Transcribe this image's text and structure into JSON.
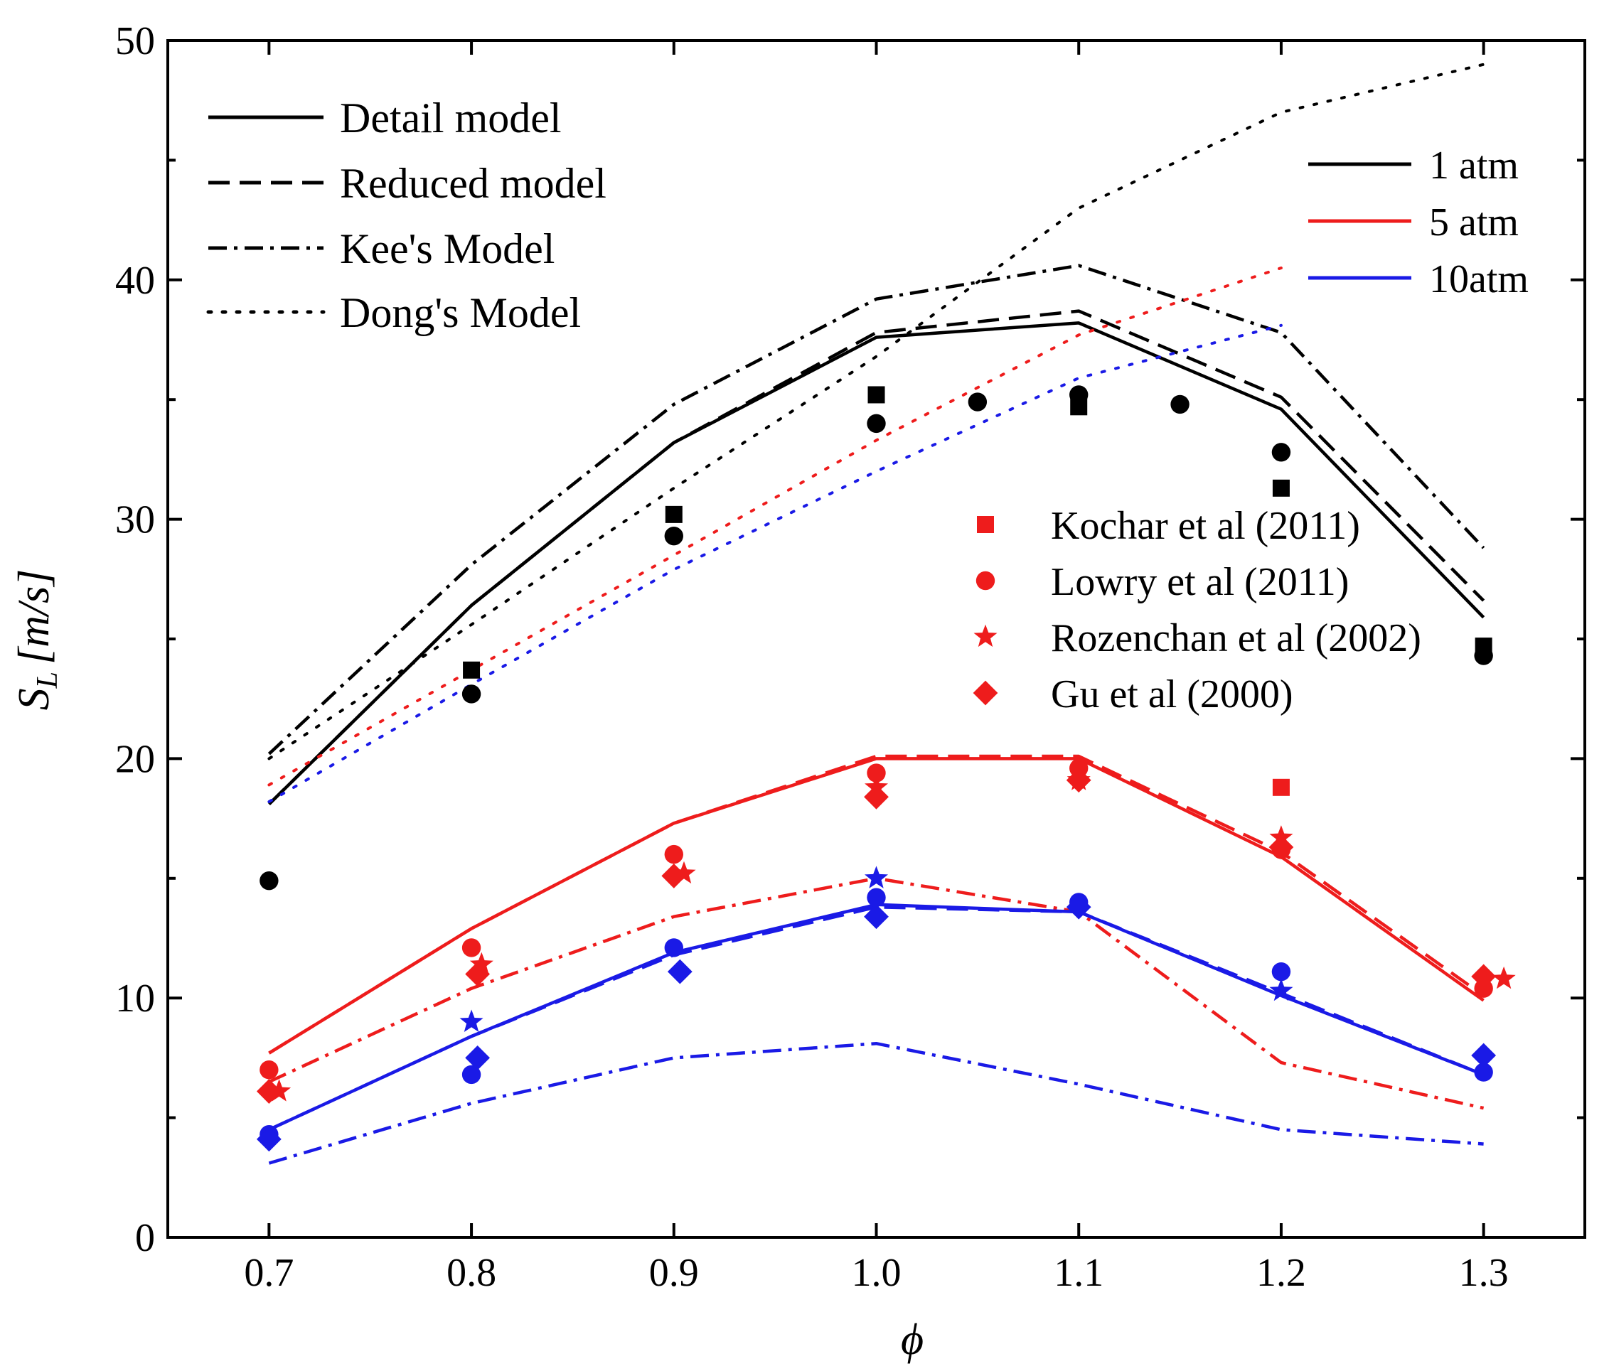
{
  "chart_data": {
    "type": "line",
    "xlabel": "ϕ",
    "ylabel_main": "S",
    "ylabel_sub": "L",
    "ylabel_unit": "[m/s]",
    "xlim": [
      0.65,
      1.35
    ],
    "ylim": [
      0,
      50
    ],
    "x_ticks": [
      0.7,
      0.8,
      0.9,
      1.0,
      1.1,
      1.2,
      1.3
    ],
    "x_tick_labels": [
      "0.7",
      "0.8",
      "0.9",
      "1.0",
      "1.1",
      "1.2",
      "1.3"
    ],
    "y_ticks": [
      0,
      10,
      20,
      30,
      40,
      50
    ],
    "y_tick_labels": [
      "0",
      "10",
      "20",
      "30",
      "40",
      "50"
    ],
    "y_minor_ticks": [
      5,
      15,
      25,
      35,
      45
    ],
    "colors": {
      "1 atm": "#000000",
      "5 atm": "#ee1c1c",
      "10atm": "#1a1ae6"
    },
    "legend_models": {
      "items": [
        {
          "label": "Detail model",
          "style": "solid"
        },
        {
          "label": "Reduced model",
          "style": "dashed"
        },
        {
          "label": "Kee's Model",
          "style": "dashdot"
        },
        {
          "label": "Dong's Model",
          "style": "dotted"
        }
      ]
    },
    "legend_pressure": {
      "items": [
        {
          "label": "1 atm",
          "color": "#000000"
        },
        {
          "label": "5 atm",
          "color": "#ee1c1c"
        },
        {
          "label": "10atm",
          "color": "#1a1ae6"
        }
      ]
    },
    "legend_experiments": {
      "color": "#ee1c1c",
      "items": [
        {
          "label": "Kochar et al (2011)",
          "marker": "square"
        },
        {
          "label": "Lowry et al (2011)",
          "marker": "circle"
        },
        {
          "label": "Rozenchan et al (2002)",
          "marker": "star"
        },
        {
          "label": "Gu et al (2000)",
          "marker": "diamond"
        }
      ]
    },
    "series": [
      {
        "name": "Detail model 1 atm",
        "model": "Detail model",
        "pressure": "1 atm",
        "style": "solid",
        "color": "#000000",
        "x": [
          0.7,
          0.8,
          0.9,
          1.0,
          1.1,
          1.2,
          1.3
        ],
        "y": [
          18.1,
          26.4,
          33.2,
          37.6,
          38.2,
          34.6,
          25.9
        ]
      },
      {
        "name": "Reduced model 1 atm",
        "model": "Reduced model",
        "pressure": "1 atm",
        "style": "dashed",
        "color": "#000000",
        "x": [
          0.7,
          0.8,
          0.9,
          1.0,
          1.1,
          1.2,
          1.3
        ],
        "y": [
          18.1,
          26.4,
          33.2,
          37.8,
          38.7,
          35.1,
          26.6
        ]
      },
      {
        "name": "Kee's Model 1 atm",
        "model": "Kee's Model",
        "pressure": "1 atm",
        "style": "dashdot",
        "color": "#000000",
        "x": [
          0.7,
          0.8,
          0.9,
          1.0,
          1.1,
          1.2,
          1.3
        ],
        "y": [
          20.2,
          28.1,
          34.8,
          39.2,
          40.6,
          37.8,
          28.8
        ]
      },
      {
        "name": "Dong's Model 1 atm",
        "model": "Dong's Model",
        "pressure": "1 atm",
        "style": "dotted",
        "color": "#000000",
        "x": [
          0.7,
          0.8,
          0.9,
          1.0,
          1.1,
          1.2,
          1.3
        ],
        "y": [
          20.0,
          25.6,
          31.3,
          36.8,
          43.0,
          47.0,
          49.0
        ]
      },
      {
        "name": "Detail model 5 atm",
        "model": "Detail model",
        "pressure": "5 atm",
        "style": "solid",
        "color": "#ee1c1c",
        "x": [
          0.7,
          0.8,
          0.9,
          1.0,
          1.1,
          1.2,
          1.3
        ],
        "y": [
          7.7,
          12.9,
          17.3,
          20.0,
          20.0,
          15.9,
          9.9
        ]
      },
      {
        "name": "Reduced model 5 atm",
        "model": "Reduced model",
        "pressure": "5 atm",
        "style": "dashed",
        "color": "#ee1c1c",
        "x": [
          0.7,
          0.8,
          0.9,
          1.0,
          1.1,
          1.2,
          1.3
        ],
        "y": [
          7.7,
          12.9,
          17.3,
          20.1,
          20.1,
          16.1,
          10.1
        ]
      },
      {
        "name": "Kee's Model 5 atm",
        "model": "Kee's Model",
        "pressure": "5 atm",
        "style": "dashdot",
        "color": "#ee1c1c",
        "x": [
          0.7,
          0.8,
          0.9,
          1.0,
          1.1,
          1.2,
          1.3
        ],
        "y": [
          6.5,
          10.4,
          13.4,
          15.0,
          13.6,
          7.3,
          5.4
        ]
      },
      {
        "name": "Dong's Model 5 atm",
        "model": "Dong's Model",
        "pressure": "5 atm",
        "style": "dotted",
        "color": "#ee1c1c",
        "x": [
          0.7,
          0.8,
          0.9,
          1.0,
          1.1,
          1.2
        ],
        "y": [
          18.9,
          23.7,
          28.5,
          33.3,
          37.7,
          40.5
        ]
      },
      {
        "name": "Detail model 10atm",
        "model": "Detail model",
        "pressure": "10atm",
        "style": "solid",
        "color": "#1a1ae6",
        "x": [
          0.7,
          0.8,
          0.9,
          1.0,
          1.1,
          1.2,
          1.3
        ],
        "y": [
          4.5,
          8.4,
          11.9,
          13.9,
          13.6,
          10.1,
          6.8
        ]
      },
      {
        "name": "Reduced model 10atm",
        "model": "Reduced model",
        "pressure": "10atm",
        "style": "dashed",
        "color": "#1a1ae6",
        "x": [
          0.7,
          0.8,
          0.9,
          1.0,
          1.1,
          1.2,
          1.3
        ],
        "y": [
          4.5,
          8.4,
          11.8,
          13.8,
          13.6,
          10.2,
          6.8
        ]
      },
      {
        "name": "Kee's Model 10atm",
        "model": "Kee's Model",
        "pressure": "10atm",
        "style": "dashdot",
        "color": "#1a1ae6",
        "x": [
          0.7,
          0.8,
          0.9,
          1.0,
          1.1,
          1.2,
          1.3
        ],
        "y": [
          3.1,
          5.6,
          7.5,
          8.1,
          6.4,
          4.5,
          3.9
        ]
      },
      {
        "name": "Dong's Model 10atm",
        "model": "Dong's Model",
        "pressure": "10atm",
        "style": "dotted",
        "color": "#1a1ae6",
        "x": [
          0.7,
          0.8,
          0.9,
          1.0,
          1.1,
          1.2
        ],
        "y": [
          18.2,
          23.1,
          27.9,
          32.0,
          35.9,
          38.1
        ]
      }
    ],
    "experiments": [
      {
        "source": "Kochar et al (2011)",
        "marker": "square",
        "pressure": "1 atm",
        "color": "#000000",
        "x": [
          0.8,
          0.9,
          1.0,
          1.1,
          1.2,
          1.3
        ],
        "y": [
          23.7,
          30.2,
          35.2,
          34.7,
          31.3,
          24.7
        ]
      },
      {
        "source": "Lowry et al (2011)",
        "marker": "circle",
        "pressure": "1 atm",
        "color": "#000000",
        "x": [
          0.7,
          0.8,
          0.9,
          1.0,
          1.05,
          1.1,
          1.15,
          1.2,
          1.3
        ],
        "y": [
          14.9,
          22.7,
          29.3,
          34.0,
          34.9,
          35.2,
          34.8,
          32.8,
          24.3
        ]
      },
      {
        "source": "Kochar et al (2011)",
        "marker": "square",
        "pressure": "5 atm",
        "color": "#ee1c1c",
        "x": [
          1.2
        ],
        "y": [
          18.8
        ]
      },
      {
        "source": "Lowry et al (2011)",
        "marker": "circle",
        "pressure": "5 atm",
        "color": "#ee1c1c",
        "x": [
          0.7,
          0.8,
          0.9,
          1.0,
          1.1,
          1.2,
          1.3
        ],
        "y": [
          7.0,
          12.1,
          16.0,
          19.4,
          19.6,
          16.2,
          10.4
        ]
      },
      {
        "source": "Rozenchan et al (2002)",
        "marker": "star",
        "pressure": "5 atm",
        "color": "#ee1c1c",
        "x": [
          0.705,
          0.805,
          0.905,
          1.0,
          1.1,
          1.2,
          1.31
        ],
        "y": [
          6.1,
          11.4,
          15.2,
          18.8,
          19.1,
          16.7,
          10.8
        ]
      },
      {
        "source": "Gu et al (2000)",
        "marker": "diamond",
        "pressure": "5 atm",
        "color": "#ee1c1c",
        "x": [
          0.7,
          0.803,
          0.9,
          1.0,
          1.1,
          1.2,
          1.3
        ],
        "y": [
          6.1,
          11.0,
          15.1,
          18.4,
          19.1,
          16.3,
          10.9
        ]
      },
      {
        "source": "Lowry et al (2011)",
        "marker": "circle",
        "pressure": "10atm",
        "color": "#1a1ae6",
        "x": [
          0.7,
          0.8,
          0.9,
          1.0,
          1.1,
          1.2,
          1.3
        ],
        "y": [
          4.3,
          6.8,
          12.1,
          14.2,
          14.0,
          11.1,
          6.9
        ]
      },
      {
        "source": "Rozenchan et al (2002)",
        "marker": "star",
        "pressure": "10atm",
        "color": "#1a1ae6",
        "x": [
          0.8,
          1.0,
          1.2
        ],
        "y": [
          9.0,
          15.0,
          10.3
        ]
      },
      {
        "source": "Gu et al (2000)",
        "marker": "diamond",
        "pressure": "10atm",
        "color": "#1a1ae6",
        "x": [
          0.7,
          0.803,
          0.903,
          1.0,
          1.1,
          1.3
        ],
        "y": [
          4.1,
          7.5,
          11.1,
          13.4,
          13.8,
          7.6
        ]
      }
    ]
  }
}
